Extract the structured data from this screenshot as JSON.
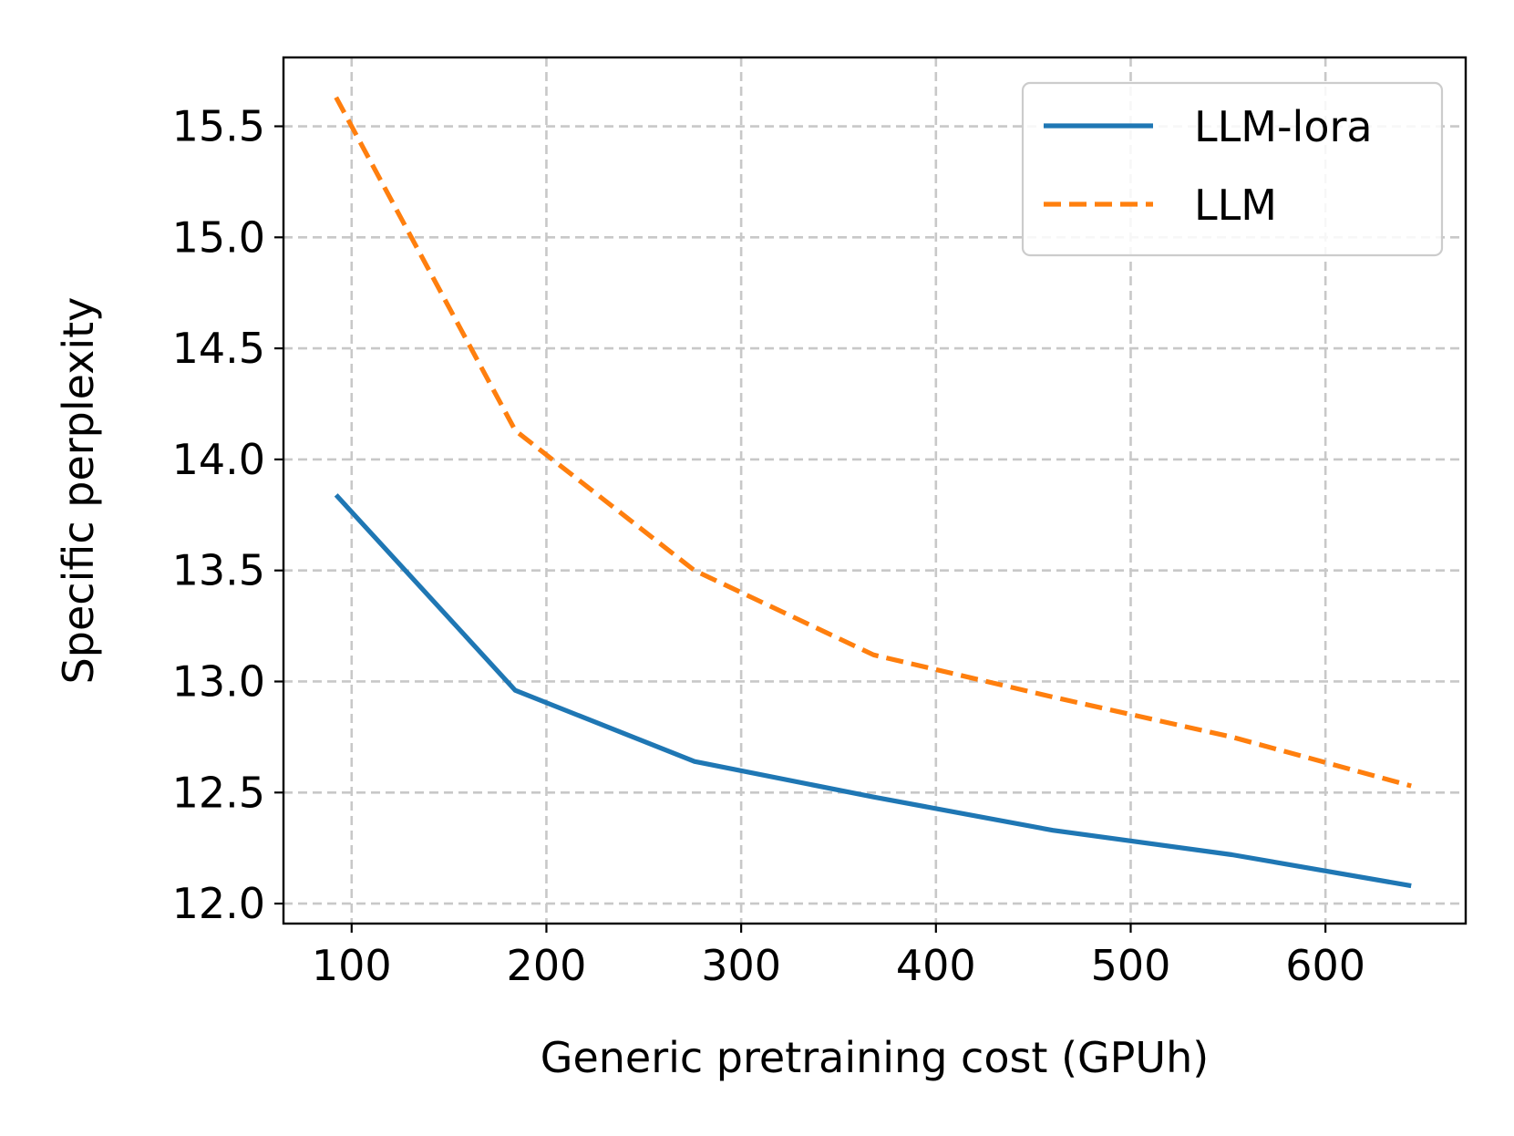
{
  "chart_data": {
    "type": "line",
    "title": "",
    "xlabel": "Generic pretraining cost (GPUh)",
    "ylabel": "Specific perplexity",
    "xlim": [
      65,
      672
    ],
    "ylim": [
      11.91,
      15.81
    ],
    "xticks": [
      100,
      200,
      300,
      400,
      500,
      600
    ],
    "xtick_labels": [
      "100",
      "200",
      "300",
      "400",
      "500",
      "600"
    ],
    "yticks": [
      12.0,
      12.5,
      13.0,
      13.5,
      14.0,
      14.5,
      15.0,
      15.5
    ],
    "ytick_labels": [
      "12.0",
      "12.5",
      "13.0",
      "13.5",
      "14.0",
      "14.5",
      "15.0",
      "15.5"
    ],
    "grid": true,
    "legend_position": "top-right",
    "series": [
      {
        "name": "LLM-lora",
        "color": "#1f77b4",
        "style": "solid",
        "x": [
          92,
          184,
          276,
          368,
          460,
          552,
          644
        ],
        "y": [
          13.84,
          12.96,
          12.64,
          12.48,
          12.33,
          12.22,
          12.08
        ]
      },
      {
        "name": "LLM",
        "color": "#ff7f0e",
        "style": "dashed",
        "x": [
          92,
          184,
          276,
          368,
          460,
          552,
          644
        ],
        "y": [
          15.63,
          14.13,
          13.5,
          13.12,
          12.93,
          12.75,
          12.53
        ]
      }
    ]
  }
}
